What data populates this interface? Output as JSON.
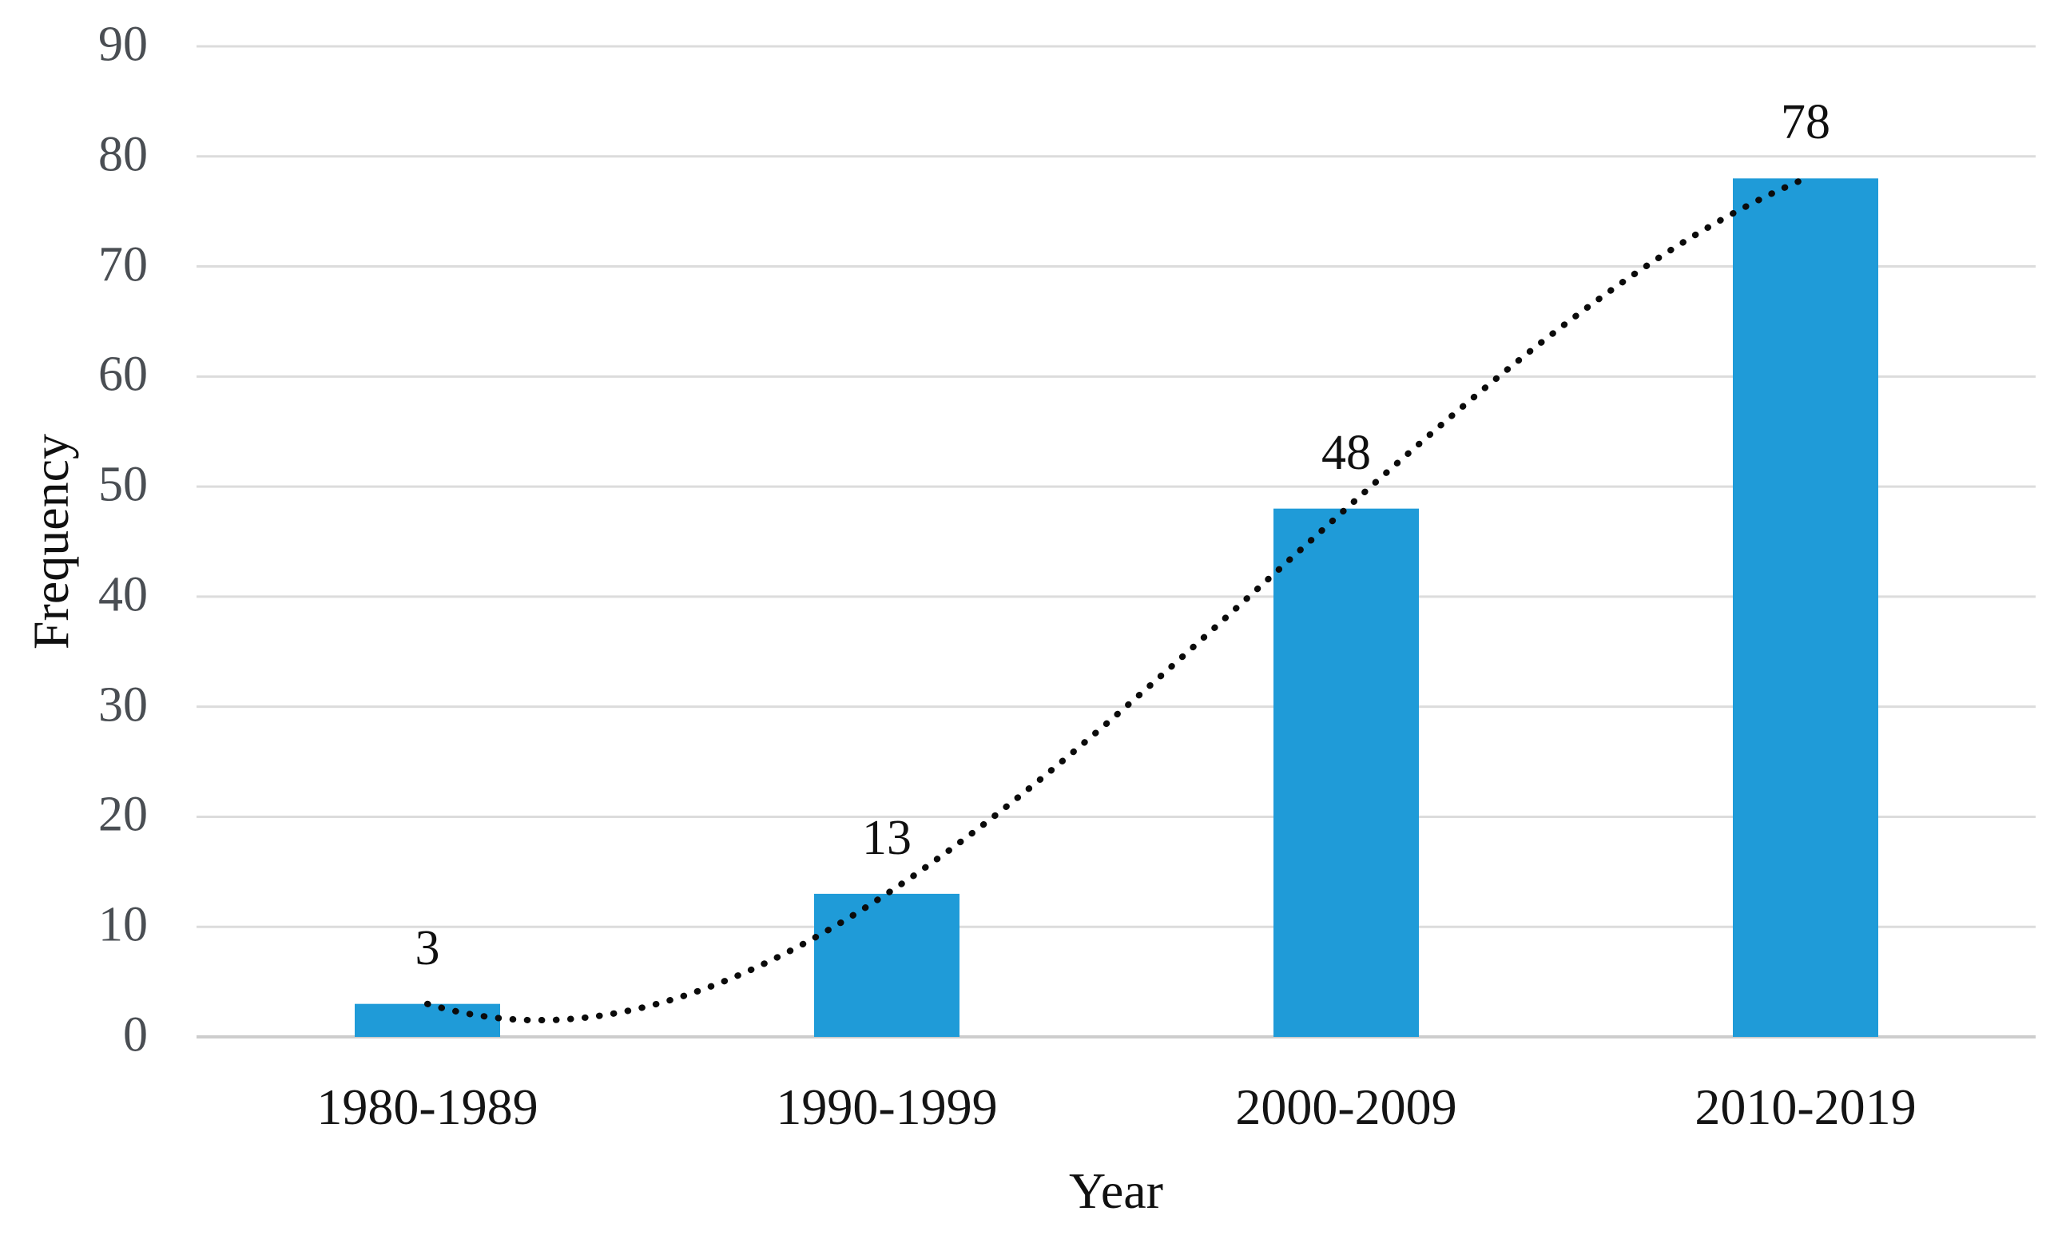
{
  "chart_data": {
    "type": "bar",
    "title": "",
    "categories": [
      "1980-1989",
      "1990-1999",
      "2000-2009",
      "2010-2019"
    ],
    "values": [
      3,
      13,
      48,
      78
    ],
    "data_labels": [
      "3",
      "13",
      "48",
      "78"
    ],
    "xlabel": "Year",
    "ylabel": "Frequency",
    "ylim": [
      0,
      90
    ],
    "ytick_step": 10,
    "yticks": [
      "0",
      "10",
      "20",
      "30",
      "40",
      "50",
      "60",
      "70",
      "80",
      "90"
    ],
    "grid": true,
    "legend_position": "none",
    "bar_color": "#1F9BD8",
    "trendline": {
      "style": "dotted",
      "color": "#0B0B0B",
      "type": "polynomial-order-3",
      "fit_points": [
        3,
        13,
        48,
        78
      ]
    },
    "colors": {
      "gridline": "#DCDCDC",
      "axis_line": "#CDCDCD",
      "ytick_text": "#4A4E53",
      "label_text": "#101010",
      "background": "#FFFFFF"
    }
  }
}
